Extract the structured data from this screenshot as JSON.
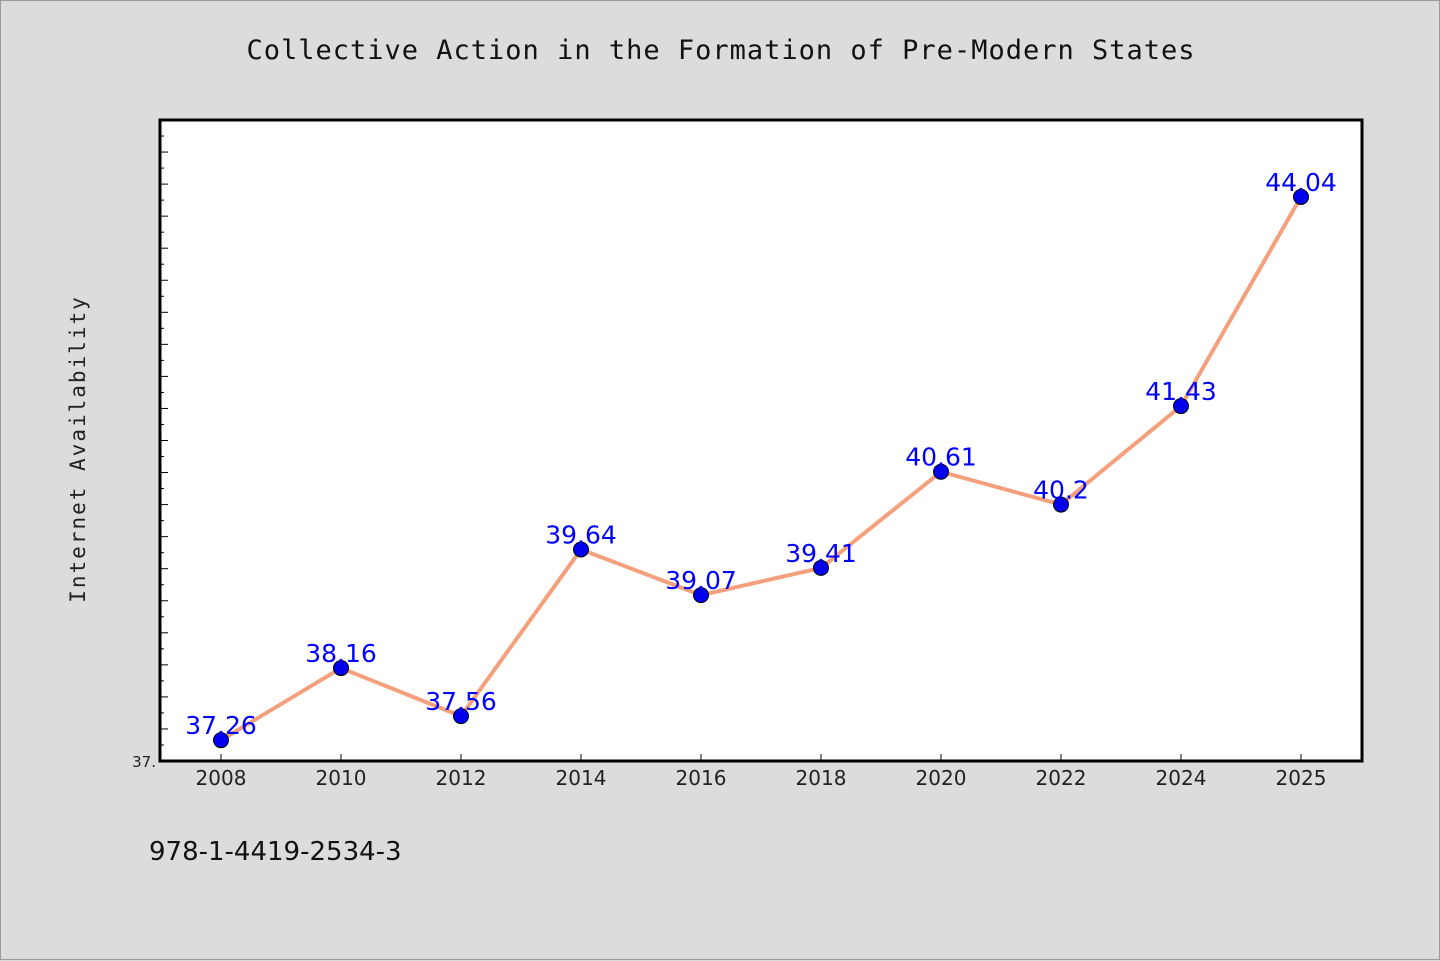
{
  "chart_data": {
    "type": "line",
    "title": "Collective Action in the Formation of Pre-Modern States",
    "xlabel": "",
    "ylabel": "Internet Availability",
    "x": [
      "2008",
      "2010",
      "2012",
      "2014",
      "2016",
      "2018",
      "2020",
      "2022",
      "2024",
      "2025"
    ],
    "series": [
      {
        "values": [
          37.26,
          38.16,
          37.56,
          39.64,
          39.07,
          39.41,
          40.61,
          40.2,
          41.43,
          44.04
        ],
        "labels": [
          "37.26",
          "38.16",
          "37.56",
          "39.64",
          "39.07",
          "39.41",
          "40.61",
          "40.2",
          "41.43",
          "44.04"
        ],
        "line_color": "#f4a07c",
        "marker_color": "#0000ee"
      }
    ],
    "ylim": [
      37.0,
      45.0
    ],
    "y_tick_labels": [
      "37."
    ],
    "grid": false,
    "legend": "none"
  },
  "footer": {
    "isbn": "978-1-4419-2534-3"
  },
  "colors": {
    "background": "#dcdcdc",
    "plot_background": "#ffffff",
    "data_label": "#0000ff"
  }
}
